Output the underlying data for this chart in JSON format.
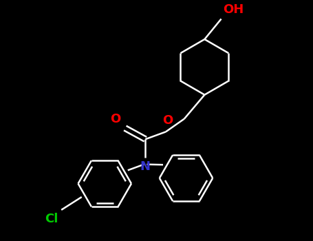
{
  "background_color": "#000000",
  "bond_color": "#ffffff",
  "o_color": "#ff0000",
  "n_color": "#3333cc",
  "cl_color": "#00cc00",
  "line_width": 1.8,
  "font_size": 13,
  "fig_width": 4.55,
  "fig_height": 3.5,
  "dpi": 100,
  "xlim": [
    -3.5,
    3.5
  ],
  "ylim": [
    -3.5,
    3.0
  ]
}
